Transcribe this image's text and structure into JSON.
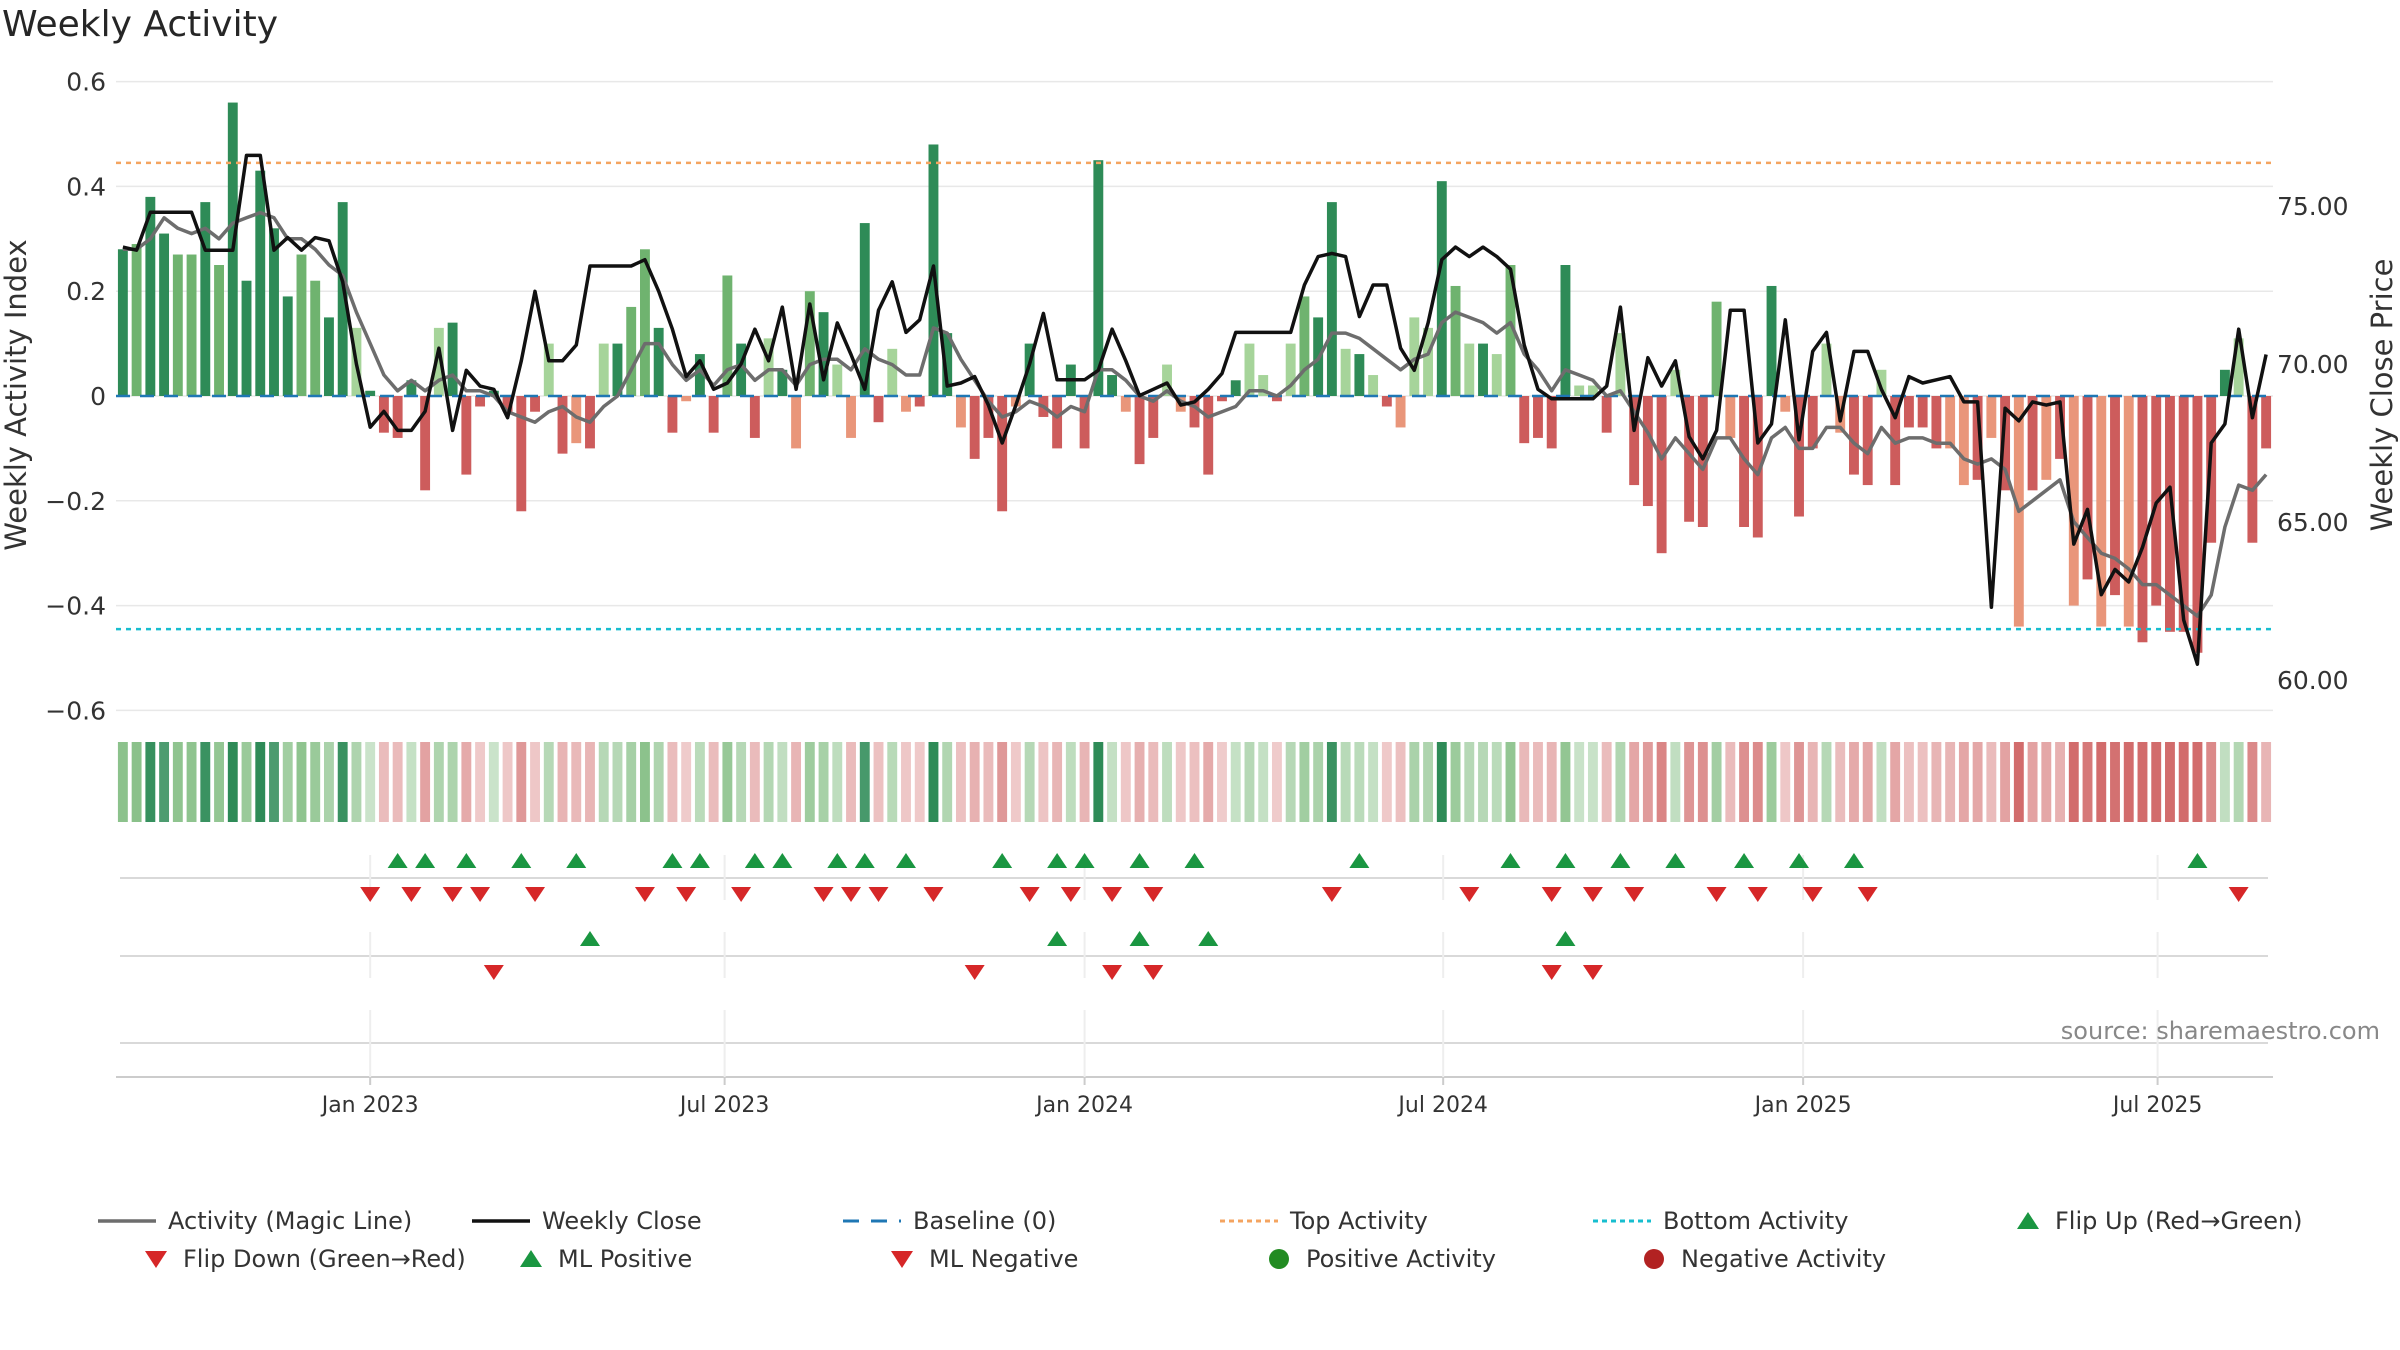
{
  "title": "Weekly Activity",
  "source": "source: sharemaestro.com",
  "colors": {
    "pos_dark": "#2e8b57",
    "pos_mid": "#6fb36f",
    "pos_light": "#a6d49a",
    "neg_dark": "#cd5c5c",
    "neg_light": "#e9967a",
    "magic": "#6d6d6d",
    "close": "#111111",
    "baseline": "#1f77b4",
    "top": "#f4a460",
    "bottom": "#17becf",
    "flip_up": "#1a9641",
    "flip_down": "#d62728",
    "pos_dot": "#228b22",
    "neg_dot": "#b22222"
  },
  "legend": [
    {
      "label": "Activity (Magic Line)",
      "icon": "line-solid-grey"
    },
    {
      "label": "Weekly Close",
      "icon": "line-solid-black"
    },
    {
      "label": "Baseline (0)",
      "icon": "line-dashed-blue"
    },
    {
      "label": "Top Activity",
      "icon": "line-dotted-orange"
    },
    {
      "label": "Bottom Activity",
      "icon": "line-dotted-cyan"
    },
    {
      "label": "Flip Up (Red→Green)",
      "icon": "triangle-up-green"
    },
    {
      "label": "Flip Down (Green→Red)",
      "icon": "triangle-down-red"
    },
    {
      "label": "ML Positive",
      "icon": "triangle-up-green"
    },
    {
      "label": "ML Negative",
      "icon": "triangle-down-red"
    },
    {
      "label": "Positive Activity",
      "icon": "circle-green"
    },
    {
      "label": "Negative Activity",
      "icon": "circle-red"
    }
  ],
  "chart_data": {
    "type": "bar",
    "title": "Weekly Activity",
    "ylabel": "Weekly Activity Index",
    "y2label": "Weekly Close Price",
    "ylim": [
      -0.64,
      0.6
    ],
    "y2lim": [
      57.5,
      77.5
    ],
    "yticks": [
      0.6,
      0.4,
      0.2,
      0,
      -0.2,
      -0.4,
      -0.6
    ],
    "ytick_labels": [
      "0.6",
      "0.4",
      "0.2",
      "0",
      "−0.2",
      "−0.4",
      "−0.6"
    ],
    "y2ticks": [
      75,
      70,
      65,
      60
    ],
    "y2tick_labels": [
      "75.00",
      "70.00",
      "65.00",
      "60.00"
    ],
    "top_activity": 0.445,
    "bottom_activity": -0.445,
    "baseline": 0,
    "xticks": [
      {
        "label": "Jan 2023",
        "week": 18.5
      },
      {
        "label": "Jul 2023",
        "week": 44.3
      },
      {
        "label": "Jan 2024",
        "week": 70.5
      },
      {
        "label": "Jul 2024",
        "week": 96.6
      },
      {
        "label": "Jan 2025",
        "week": 122.8
      },
      {
        "label": "Jul 2025",
        "week": 148.6
      }
    ],
    "weeks": 157,
    "activity": [
      0.28,
      0.29,
      0.38,
      0.31,
      0.27,
      0.27,
      0.37,
      0.25,
      0.56,
      0.22,
      0.43,
      0.32,
      0.19,
      0.27,
      0.22,
      0.15,
      0.37,
      0.13,
      0.01,
      -0.07,
      -0.08,
      0.03,
      -0.18,
      0.13,
      0.14,
      -0.15,
      -0.02,
      0.01,
      -0.03,
      -0.22,
      -0.03,
      0.1,
      -0.11,
      -0.09,
      -0.1,
      0.1,
      0.1,
      0.17,
      0.28,
      0.13,
      -0.07,
      -0.01,
      0.08,
      -0.07,
      0.23,
      0.1,
      -0.08,
      0.11,
      0.05,
      -0.1,
      0.2,
      0.16,
      0.06,
      -0.08,
      0.33,
      -0.05,
      0.09,
      -0.03,
      -0.02,
      0.48,
      0.12,
      -0.06,
      -0.12,
      -0.08,
      -0.22,
      -0.02,
      0.1,
      -0.04,
      -0.1,
      0.06,
      -0.1,
      0.45,
      0.04,
      -0.03,
      -0.13,
      -0.08,
      0.06,
      -0.03,
      -0.06,
      -0.15,
      -0.01,
      0.03,
      0.1,
      0.04,
      -0.01,
      0.1,
      0.19,
      0.15,
      0.37,
      0.09,
      0.08,
      0.04,
      -0.02,
      -0.06,
      0.15,
      0.13,
      0.41,
      0.21,
      0.1,
      0.1,
      0.08,
      0.25,
      -0.09,
      -0.08,
      -0.1,
      0.25,
      0.02,
      0.02,
      -0.07,
      0.12,
      -0.17,
      -0.21,
      -0.3,
      0.05,
      -0.24,
      -0.25,
      0.18,
      -0.08,
      -0.25,
      -0.27,
      0.21,
      -0.03,
      -0.23,
      -0.1,
      0.1,
      -0.07,
      -0.15,
      -0.17,
      0.05,
      -0.17,
      -0.06,
      -0.06,
      -0.1,
      -0.1,
      -0.17,
      -0.16,
      -0.08,
      -0.18,
      -0.44,
      -0.18,
      -0.16,
      -0.12,
      -0.4,
      -0.35,
      -0.44,
      -0.38,
      -0.44,
      -0.47,
      -0.4,
      -0.45,
      -0.45,
      -0.49,
      -0.28,
      0.05,
      0.11,
      -0.28,
      -0.1
    ],
    "magic_line": [
      0.28,
      0.28,
      0.3,
      0.34,
      0.32,
      0.31,
      0.32,
      0.3,
      0.33,
      0.34,
      0.35,
      0.34,
      0.3,
      0.3,
      0.28,
      0.25,
      0.23,
      0.16,
      0.1,
      0.04,
      0.01,
      0.03,
      0.01,
      0.03,
      0.04,
      0.01,
      0.01,
      0.0,
      -0.03,
      -0.04,
      -0.05,
      -0.03,
      -0.02,
      -0.04,
      -0.05,
      -0.02,
      0.0,
      0.05,
      0.1,
      0.1,
      0.06,
      0.03,
      0.05,
      0.02,
      0.05,
      0.06,
      0.03,
      0.05,
      0.05,
      0.02,
      0.06,
      0.07,
      0.07,
      0.05,
      0.09,
      0.07,
      0.06,
      0.04,
      0.04,
      0.13,
      0.12,
      0.07,
      0.03,
      -0.01,
      -0.04,
      -0.03,
      -0.01,
      -0.02,
      -0.04,
      -0.02,
      -0.03,
      0.05,
      0.05,
      0.03,
      0.0,
      -0.01,
      0.01,
      -0.01,
      -0.02,
      -0.04,
      -0.03,
      -0.02,
      0.01,
      0.01,
      0.0,
      0.02,
      0.05,
      0.07,
      0.12,
      0.12,
      0.11,
      0.09,
      0.07,
      0.05,
      0.07,
      0.08,
      0.14,
      0.16,
      0.15,
      0.14,
      0.12,
      0.14,
      0.08,
      0.05,
      0.01,
      0.05,
      0.04,
      0.03,
      0.0,
      0.01,
      -0.03,
      -0.07,
      -0.12,
      -0.08,
      -0.11,
      -0.14,
      -0.08,
      -0.08,
      -0.12,
      -0.15,
      -0.08,
      -0.06,
      -0.1,
      -0.1,
      -0.06,
      -0.06,
      -0.09,
      -0.11,
      -0.06,
      -0.09,
      -0.08,
      -0.08,
      -0.09,
      -0.09,
      -0.12,
      -0.13,
      -0.12,
      -0.14,
      -0.22,
      -0.2,
      -0.18,
      -0.16,
      -0.24,
      -0.27,
      -0.3,
      -0.31,
      -0.33,
      -0.36,
      -0.36,
      -0.38,
      -0.4,
      -0.42,
      -0.38,
      -0.25,
      -0.17,
      -0.18,
      -0.15
    ],
    "weekly_close": [
      73.7,
      73.6,
      74.8,
      74.8,
      74.8,
      74.8,
      73.6,
      73.6,
      73.6,
      76.6,
      76.6,
      73.6,
      74.0,
      73.6,
      74.0,
      73.9,
      72.6,
      70.0,
      68.0,
      68.5,
      67.9,
      67.9,
      68.5,
      70.5,
      67.9,
      69.8,
      69.3,
      69.2,
      68.3,
      70.1,
      72.3,
      70.1,
      70.1,
      70.6,
      73.1,
      73.1,
      73.1,
      73.1,
      73.3,
      72.3,
      71.1,
      69.6,
      70.1,
      69.2,
      69.4,
      70.0,
      71.1,
      70.1,
      71.8,
      69.2,
      71.9,
      69.5,
      71.3,
      70.3,
      69.2,
      71.7,
      72.6,
      71.0,
      71.4,
      73.1,
      69.3,
      69.4,
      69.6,
      68.7,
      67.5,
      68.7,
      70.0,
      71.6,
      69.5,
      69.5,
      69.5,
      69.8,
      71.1,
      70.1,
      69.0,
      69.2,
      69.4,
      68.7,
      68.8,
      69.2,
      69.7,
      71.0,
      71.0,
      71.0,
      71.0,
      71.0,
      72.5,
      73.4,
      73.5,
      73.4,
      71.5,
      72.5,
      72.5,
      70.5,
      69.8,
      71.3,
      73.3,
      73.7,
      73.4,
      73.7,
      73.4,
      73.0,
      70.6,
      69.2,
      68.9,
      68.9,
      68.9,
      68.9,
      69.3,
      71.8,
      67.9,
      70.2,
      69.3,
      70.1,
      67.7,
      67.0,
      67.9,
      71.7,
      71.7,
      67.5,
      68.1,
      71.4,
      67.6,
      70.4,
      71.0,
      68.2,
      70.4,
      70.4,
      69.2,
      68.3,
      69.6,
      69.4,
      69.5,
      69.6,
      68.8,
      68.8,
      62.3,
      68.6,
      68.2,
      68.8,
      68.7,
      68.8,
      64.3,
      65.4,
      62.7,
      63.5,
      63.1,
      64.2,
      65.6,
      66.1,
      61.9,
      60.5,
      67.5,
      68.1,
      71.1,
      68.3,
      70.3
    ]
  },
  "rows": {
    "ticks": [
      "Jan 2023",
      "Jul 2023",
      "Jan 2024",
      "Jul 2024",
      "Jan 2025",
      "Jul 2025"
    ],
    "flip_up_weeks": [
      20,
      22,
      25,
      29,
      33,
      40,
      42,
      46,
      48,
      52,
      54,
      57,
      64,
      68,
      70,
      74,
      78,
      90,
      101,
      105,
      109,
      113,
      118,
      122,
      126,
      151
    ],
    "flip_down_weeks": [
      18,
      21,
      24,
      26,
      30,
      38,
      41,
      45,
      51,
      53,
      55,
      59,
      66,
      69,
      72,
      75,
      88,
      98,
      104,
      107,
      110,
      116,
      119,
      123,
      127,
      154
    ],
    "ml_positive_weeks": [
      34,
      68,
      74,
      79,
      105
    ],
    "ml_negative_weeks": [
      27,
      62,
      72,
      75,
      104,
      107
    ]
  }
}
